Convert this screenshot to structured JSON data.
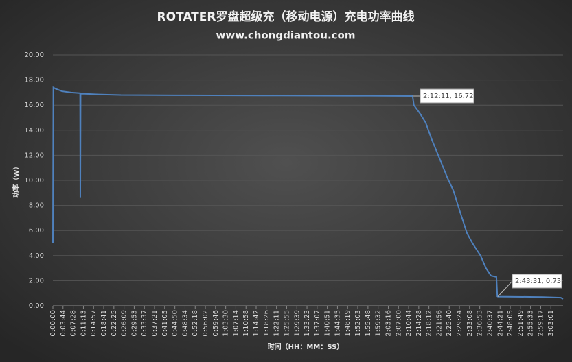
{
  "chart_data": {
    "type": "line",
    "title": "ROTATER罗盘超级充（移动电源）充电功率曲线",
    "subtitle": "www.chongdiantou.com",
    "y_label": "功率（W）",
    "x_label": "时间（HH：MM：SS）",
    "annotations": [
      "2:12:11, 16.72",
      "2:43:31, 0.73"
    ],
    "x": [
      0,
      10,
      60,
      200,
      400,
      600,
      605,
      612,
      700,
      1000,
      1500,
      3000,
      5000,
      7000,
      7931,
      7960,
      8100,
      8220,
      8350,
      8520,
      8700,
      8830,
      8950,
      9130,
      9250,
      9430,
      9550,
      9660,
      9780,
      9800,
      9811,
      10200,
      10800,
      11200,
      11250
    ],
    "series": [
      {
        "name": "功率",
        "color": "#4f81bd",
        "values": [
          5.0,
          17.4,
          17.3,
          17.1,
          17.0,
          16.95,
          8.6,
          16.9,
          16.9,
          16.85,
          16.8,
          16.78,
          16.76,
          16.74,
          16.72,
          16.0,
          15.3,
          14.6,
          13.3,
          11.8,
          10.2,
          9.2,
          7.8,
          5.8,
          5.0,
          4.0,
          3.0,
          2.4,
          2.3,
          0.75,
          0.73,
          0.72,
          0.7,
          0.65,
          0.55
        ]
      }
    ],
    "xlim": [
      0,
      11250
    ],
    "xticks": [
      {
        "value": 0,
        "label": "0:00:00"
      },
      {
        "value": 224,
        "label": "0:03:44"
      },
      {
        "value": 448,
        "label": "0:07:28"
      },
      {
        "value": 673,
        "label": "0:11:13"
      },
      {
        "value": 897,
        "label": "0:14:57"
      },
      {
        "value": 1121,
        "label": "0:18:41"
      },
      {
        "value": 1345,
        "label": "0:22:25"
      },
      {
        "value": 1569,
        "label": "0:26:09"
      },
      {
        "value": 1793,
        "label": "0:29:53"
      },
      {
        "value": 2017,
        "label": "0:33:37"
      },
      {
        "value": 2241,
        "label": "0:37:21"
      },
      {
        "value": 2465,
        "label": "0:41:05"
      },
      {
        "value": 2690,
        "label": "0:44:50"
      },
      {
        "value": 2914,
        "label": "0:48:34"
      },
      {
        "value": 3138,
        "label": "0:52:18"
      },
      {
        "value": 3362,
        "label": "0:56:02"
      },
      {
        "value": 3586,
        "label": "0:59:46"
      },
      {
        "value": 3810,
        "label": "1:03:30"
      },
      {
        "value": 4034,
        "label": "1:07:14"
      },
      {
        "value": 4258,
        "label": "1:10:58"
      },
      {
        "value": 4482,
        "label": "1:14:42"
      },
      {
        "value": 4706,
        "label": "1:18:26"
      },
      {
        "value": 4931,
        "label": "1:22:11"
      },
      {
        "value": 5155,
        "label": "1:25:55"
      },
      {
        "value": 5379,
        "label": "1:29:39"
      },
      {
        "value": 5603,
        "label": "1:33:23"
      },
      {
        "value": 5827,
        "label": "1:37:07"
      },
      {
        "value": 6051,
        "label": "1:40:51"
      },
      {
        "value": 6275,
        "label": "1:44:35"
      },
      {
        "value": 6499,
        "label": "1:48:19"
      },
      {
        "value": 6723,
        "label": "1:52:03"
      },
      {
        "value": 6948,
        "label": "1:55:48"
      },
      {
        "value": 7172,
        "label": "1:59:32"
      },
      {
        "value": 7396,
        "label": "2:03:16"
      },
      {
        "value": 7620,
        "label": "2:07:00"
      },
      {
        "value": 7844,
        "label": "2:10:44"
      },
      {
        "value": 8068,
        "label": "2:14:28"
      },
      {
        "value": 8292,
        "label": "2:18:12"
      },
      {
        "value": 8516,
        "label": "2:21:56"
      },
      {
        "value": 8740,
        "label": "2:25:40"
      },
      {
        "value": 8964,
        "label": "2:29:24"
      },
      {
        "value": 9188,
        "label": "2:33:08"
      },
      {
        "value": 9413,
        "label": "2:36:53"
      },
      {
        "value": 9637,
        "label": "2:40:37"
      },
      {
        "value": 9861,
        "label": "2:44:21"
      },
      {
        "value": 10085,
        "label": "2:48:05"
      },
      {
        "value": 10309,
        "label": "2:51:49"
      },
      {
        "value": 10533,
        "label": "2:55:33"
      },
      {
        "value": 10757,
        "label": "2:59:17"
      },
      {
        "value": 10981,
        "label": "3:03:01"
      }
    ],
    "ylim": [
      0,
      20
    ],
    "yticks": [
      {
        "value": 0,
        "label": "0.00"
      },
      {
        "value": 2,
        "label": "2.00"
      },
      {
        "value": 4,
        "label": "4.00"
      },
      {
        "value": 6,
        "label": "6.00"
      },
      {
        "value": 8,
        "label": "8.00"
      },
      {
        "value": 10,
        "label": "10.00"
      },
      {
        "value": 12,
        "label": "12.00"
      },
      {
        "value": 14,
        "label": "14.00"
      },
      {
        "value": 16,
        "label": "16.00"
      },
      {
        "value": 18,
        "label": "18.00"
      },
      {
        "value": 20,
        "label": "20.00"
      }
    ],
    "grid": true
  }
}
